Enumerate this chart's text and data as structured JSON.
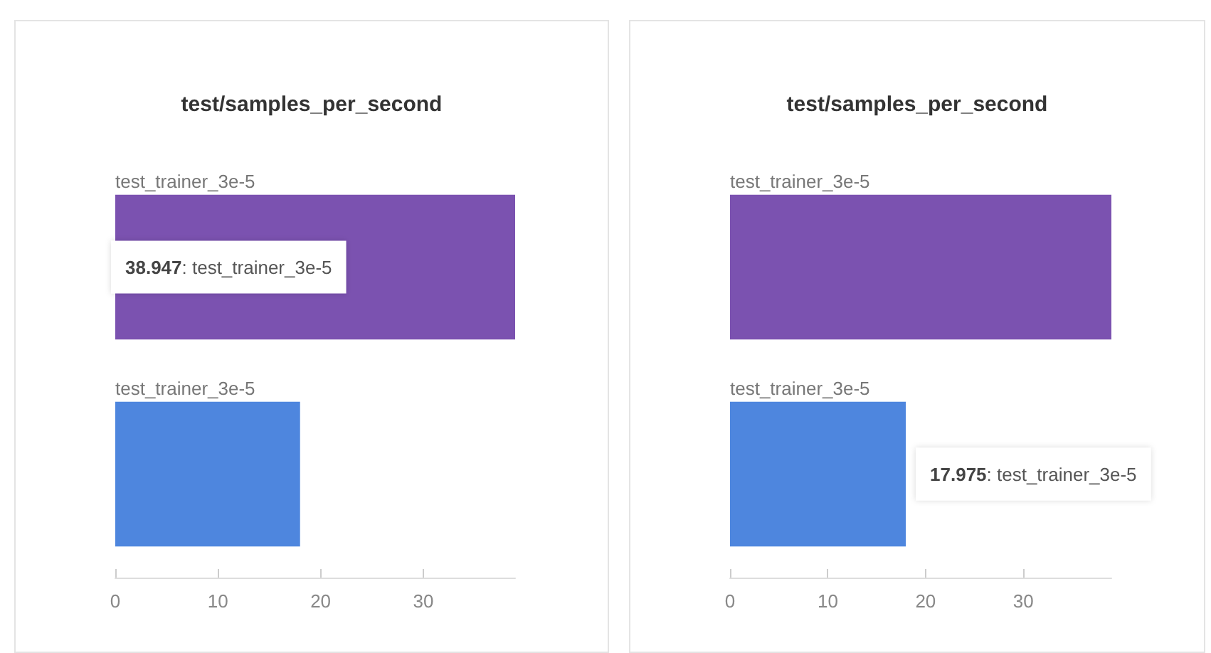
{
  "chart_data": [
    {
      "type": "bar",
      "orientation": "horizontal",
      "title": "test/samples_per_second",
      "categories": [
        "test_trainer_3e-5",
        "test_trainer_3e-5"
      ],
      "values": [
        38.947,
        18
      ],
      "colors": [
        "#7b52b0",
        "#4e86de"
      ],
      "value_labels": [
        "38.947: test_trainer_3e-5",
        null
      ],
      "xlim": [
        0,
        38.947
      ],
      "xticks": [
        0,
        10,
        20,
        30
      ]
    },
    {
      "type": "bar",
      "orientation": "horizontal",
      "title": "test/samples_per_second",
      "categories": [
        "test_trainer_3e-5",
        "test_trainer_3e-5"
      ],
      "values": [
        39,
        17.975
      ],
      "colors": [
        "#7b52b0",
        "#4e86de"
      ],
      "value_labels": [
        null,
        "17.975: test_trainer_3e-5"
      ],
      "xlim": [
        0,
        39
      ],
      "xticks": [
        0,
        10,
        20,
        30
      ]
    }
  ]
}
